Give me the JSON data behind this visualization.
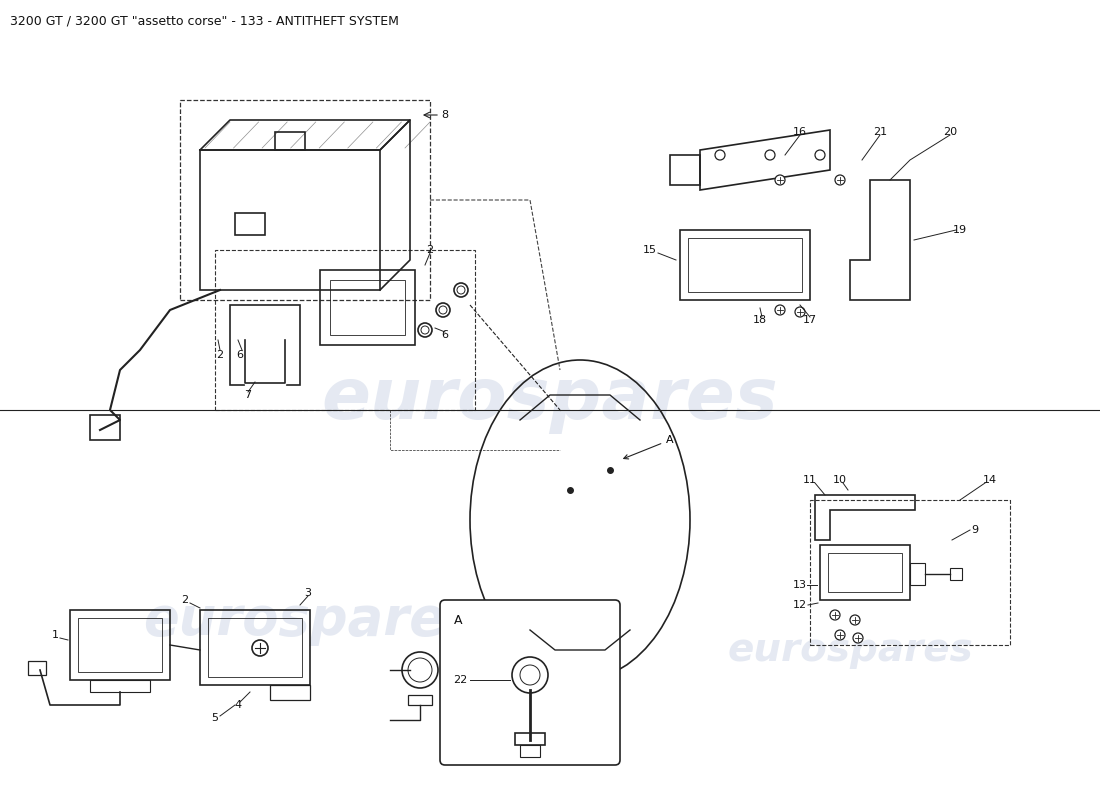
{
  "title": "3200 GT / 3200 GT \"assetto corse\" - 133 - ANTITHEFT SYSTEM",
  "title_fontsize": 9,
  "background_color": "#ffffff",
  "watermark_text": "eurospares",
  "watermark_color": "#d0d8e8",
  "watermark_alpha": 0.55,
  "watermark_fontsize": 52,
  "fig_width": 11.0,
  "fig_height": 8.0,
  "line_color": "#222222",
  "dashed_color": "#444444",
  "label_fontsize": 8
}
